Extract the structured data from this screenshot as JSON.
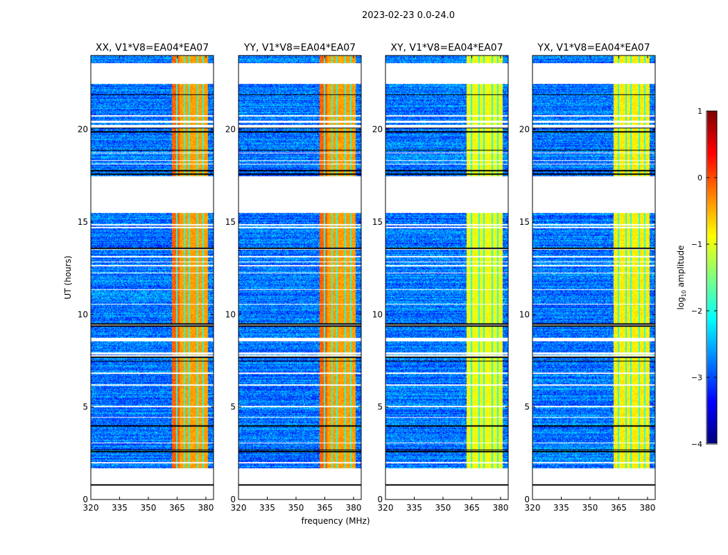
{
  "chart_data": {
    "type": "heatmap",
    "title": "2023-02-23 0.0-24.0",
    "xlabel": "frequency (MHz)",
    "ylabel": "UT (hours)",
    "xlim": [
      320,
      384
    ],
    "ylim": [
      0,
      24
    ],
    "xticks": [
      320,
      335,
      350,
      365,
      380
    ],
    "yticks": [
      0,
      5,
      10,
      15,
      20
    ],
    "panels": [
      {
        "title": "XX, V1*V8=EA04*EA07",
        "band_level": -0.4
      },
      {
        "title": "YY, V1*V8=EA04*EA07",
        "band_level": -0.4
      },
      {
        "title": "XY, V1*V8=EA04*EA07",
        "band_level": -0.9
      },
      {
        "title": "YX, V1*V8=EA04*EA07",
        "band_level": -0.8
      }
    ],
    "background_level": -2.8,
    "rfi_band_mhz": [
      362,
      381
    ],
    "blank_time_ranges_hours": [
      [
        0,
        1.7
      ],
      [
        15.5,
        17.5
      ],
      [
        22.5,
        23.6
      ]
    ],
    "colorbar": {
      "label": "log10 amplitude",
      "label_main": "log",
      "label_sub": "10",
      "label_rest": " amplitude",
      "range": [
        -4,
        1
      ],
      "ticks": [
        "1",
        "0",
        "−1",
        "−2",
        "−3",
        "−4"
      ],
      "colormap": "jet"
    }
  }
}
